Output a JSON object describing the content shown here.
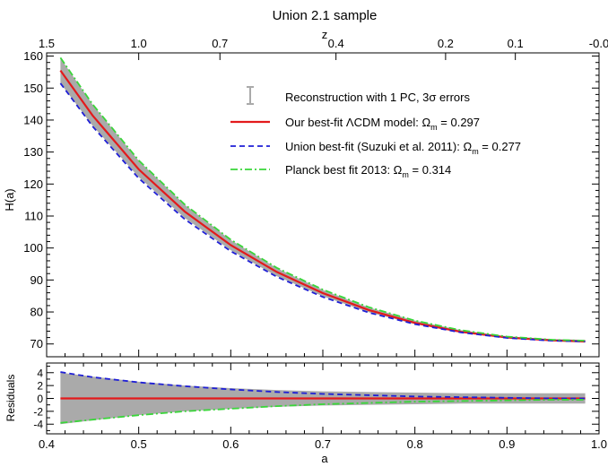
{
  "chart_data": [
    {
      "type": "line",
      "panel": "main",
      "title": "Union 2.1 sample",
      "xlabel": "",
      "ylabel": "H(a)",
      "top_axis_label": "z",
      "xlim": [
        0.4,
        1.0
      ],
      "ylim": [
        66,
        161
      ],
      "x_ticks": [
        0.4,
        0.5,
        0.6,
        0.7,
        0.8,
        0.9,
        1.0
      ],
      "x_tick_labels": [
        "0.4",
        "0.5",
        "0.6",
        "0.7",
        "0.8",
        "0.9",
        "1.0"
      ],
      "y_ticks": [
        70,
        80,
        90,
        100,
        110,
        120,
        130,
        140,
        150,
        160
      ],
      "y_tick_labels": [
        "70",
        "80",
        "90",
        "100",
        "110",
        "120",
        "130",
        "140",
        "150",
        "160"
      ],
      "top_ticks": [
        1.5,
        1.0,
        0.7,
        0.4,
        0.2,
        0.1,
        0.0
      ],
      "top_tick_labels": [
        "1.5",
        "1.0",
        "0.7",
        "0.4",
        "0.2",
        "0.1",
        "-0.0"
      ],
      "grid": false,
      "legend_placement": "top-right",
      "x": [
        0.415,
        0.45,
        0.5,
        0.55,
        0.6,
        0.65,
        0.7,
        0.75,
        0.8,
        0.85,
        0.9,
        0.95,
        0.985
      ],
      "series": [
        {
          "name": "Reconstruction with 1 PC, 3σ errors",
          "kind": "band",
          "color": "#aaaaaa",
          "lower": [
            151.5,
            138.2,
            122.2,
            109.4,
            99.3,
            91.2,
            84.9,
            79.9,
            76.2,
            73.5,
            71.8,
            70.9,
            70.4
          ],
          "upper": [
            159.4,
            144.8,
            127.3,
            113.5,
            102.5,
            93.7,
            86.9,
            81.4,
            77.3,
            74.3,
            72.4,
            71.5,
            71.3
          ]
        },
        {
          "name": "Our best-fit ΛCDM model: Ωm = 0.297",
          "color": "#e31a1c",
          "dash": "solid",
          "values": [
            155.5,
            141.4,
            124.6,
            111.4,
            100.9,
            92.5,
            85.9,
            80.6,
            76.6,
            73.8,
            72.0,
            71.1,
            70.8
          ]
        },
        {
          "name": "Union best-fit (Suzuki et al. 2011): Ωm = 0.277",
          "color": "#1f1fd6",
          "dash": "dash",
          "values": [
            151.5,
            138.0,
            121.8,
            109.0,
            99.0,
            91.0,
            84.7,
            79.8,
            76.2,
            73.6,
            71.9,
            71.0,
            70.8
          ]
        },
        {
          "name": "Planck best fit 2013: Ωm = 0.314",
          "color": "#3ad63a",
          "dash": "dashdot",
          "values": [
            159.5,
            144.9,
            127.4,
            113.6,
            102.6,
            93.8,
            87.0,
            81.5,
            77.3,
            74.3,
            72.3,
            71.3,
            71.0
          ]
        }
      ],
      "legend": {
        "band_label": "Reconstruction with 1 PC, 3σ errors",
        "lcdm_prefix": "Our best-fit ΛCDM model: Ω",
        "lcdm_value": " = 0.297",
        "union_prefix": "Union best-fit (Suzuki et al. 2011): Ω",
        "union_value": " = 0.277",
        "planck_prefix": "Planck best fit 2013: Ω",
        "planck_value": " = 0.314",
        "subscript": "m"
      }
    },
    {
      "type": "line",
      "panel": "residuals",
      "xlabel": "a",
      "ylabel": "Residuals",
      "xlim": [
        0.4,
        1.0
      ],
      "ylim": [
        -5.5,
        5.5
      ],
      "x_ticks": [
        0.4,
        0.5,
        0.6,
        0.7,
        0.8,
        0.9,
        1.0
      ],
      "x_tick_labels": [
        "0.4",
        "0.5",
        "0.6",
        "0.7",
        "0.8",
        "0.9",
        "1.0"
      ],
      "y_ticks": [
        -4,
        -2,
        0,
        2,
        4
      ],
      "y_tick_labels": [
        "-4",
        "-2",
        "0",
        "2",
        "4"
      ],
      "x": [
        0.415,
        0.45,
        0.5,
        0.55,
        0.6,
        0.65,
        0.7,
        0.75,
        0.8,
        0.85,
        0.9,
        0.95,
        0.985
      ],
      "series": [
        {
          "kind": "band",
          "color": "#aaaaaa",
          "lower": [
            -4.0,
            -3.4,
            -2.6,
            -2.0,
            -1.6,
            -1.3,
            -1.1,
            -1.0,
            -0.9,
            -0.8,
            -0.8,
            -0.8,
            -0.8
          ],
          "upper": [
            4.0,
            3.4,
            2.6,
            2.0,
            1.6,
            1.3,
            1.1,
            1.0,
            0.9,
            0.8,
            0.8,
            0.8,
            0.8
          ]
        },
        {
          "color": "#e31a1c",
          "dash": "solid",
          "values": [
            0,
            0,
            0,
            0,
            0,
            0,
            0,
            0,
            0,
            0,
            0,
            0,
            0
          ]
        },
        {
          "color": "#1f1fd6",
          "dash": "dash",
          "values": [
            4.1,
            3.3,
            2.5,
            1.9,
            1.4,
            1.0,
            0.7,
            0.5,
            0.3,
            0.2,
            0.1,
            0.0,
            0.0
          ]
        },
        {
          "color": "#3ad63a",
          "dash": "dashdot",
          "values": [
            -3.8,
            -3.3,
            -2.6,
            -2.0,
            -1.6,
            -1.2,
            -0.9,
            -0.7,
            -0.5,
            -0.4,
            -0.3,
            -0.2,
            -0.2
          ]
        }
      ]
    }
  ]
}
